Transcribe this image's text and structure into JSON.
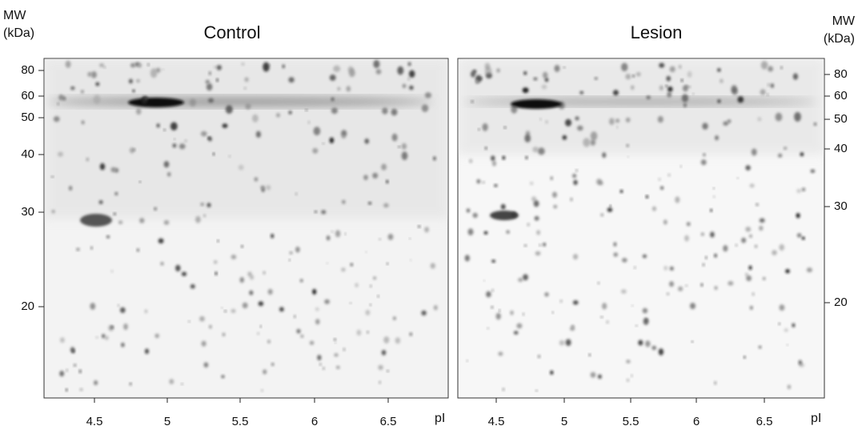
{
  "panels": [
    {
      "title": "Control",
      "mw_label": "MW",
      "unit_label": "(kDa)",
      "yticks": [
        80,
        60,
        50,
        40,
        30,
        20
      ],
      "xticks": [
        4.5,
        5,
        5.5,
        6,
        6.5
      ],
      "x_label": "pI"
    },
    {
      "title": "Lesion",
      "mw_label": "MW",
      "unit_label": "(kDa)",
      "yticks": [
        80,
        60,
        50,
        40,
        30,
        20
      ],
      "xticks": [
        4.5,
        5,
        5.5,
        6,
        6.5
      ],
      "x_label": "pI"
    }
  ]
}
